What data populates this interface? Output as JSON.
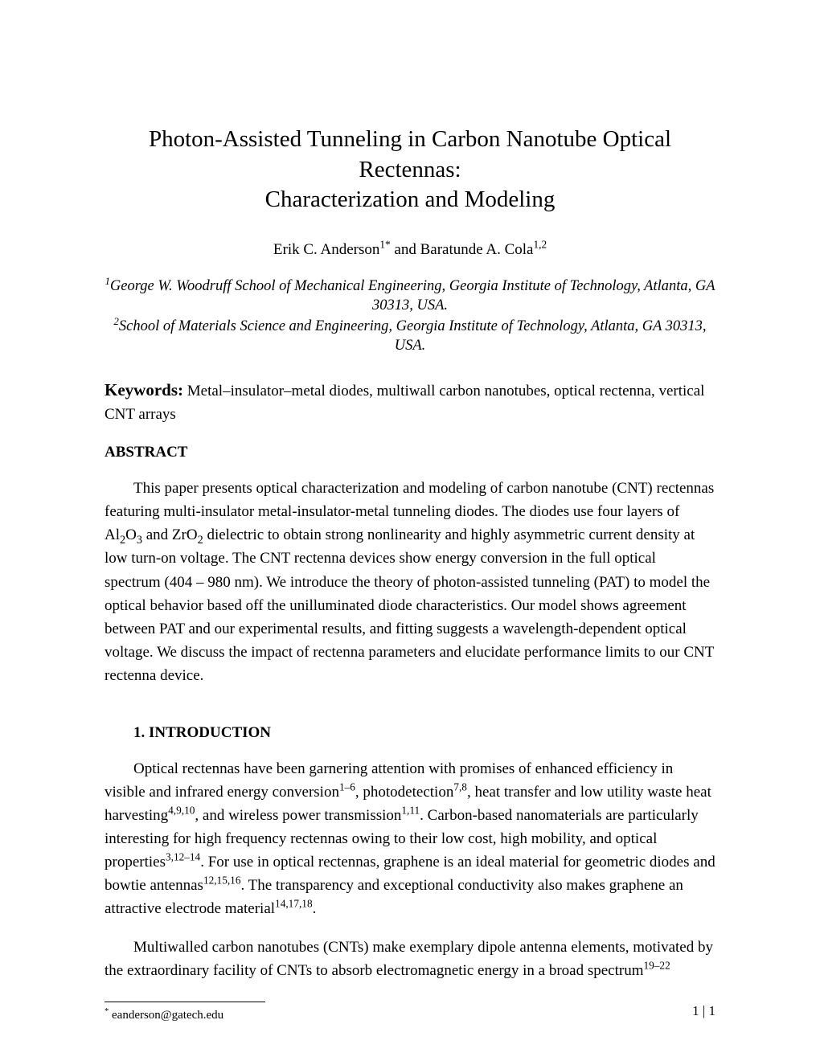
{
  "title_line1": "Photon-Assisted Tunneling in Carbon Nanotube Optical Rectennas:",
  "title_line2": "Characterization and Modeling",
  "authors": {
    "a1_name": "Erik C. Anderson",
    "a1_sup": "1*",
    "conj": " and ",
    "a2_name": "Baratunde A. Cola",
    "a2_sup": "1,2"
  },
  "affiliations": {
    "a1_sup": "1",
    "a1_text": "George W. Woodruff School of Mechanical Engineering, Georgia Institute of Technology, Atlanta, GA 30313, USA.",
    "a2_sup": "2",
    "a2_text": "School of Materials Science and Engineering, Georgia Institute of Technology, Atlanta, GA 30313, USA."
  },
  "keywords": {
    "label": "Keywords:",
    "text": " Metal–insulator–metal diodes, multiwall carbon nanotubes, optical rectenna, vertical CNT arrays"
  },
  "abstract": {
    "heading_prefix": "A",
    "heading_rest": "BSTRACT",
    "p1a": "This paper presents optical characterization and modeling of carbon nanotube (CNT) rectennas featuring multi-insulator metal-insulator-metal tunneling diodes. The diodes use four layers of Al",
    "p1b": "O",
    "p1c": " and ZrO",
    "p1d": " dielectric to obtain strong nonlinearity and highly asymmetric current density at low turn-on voltage. The CNT rectenna devices show energy conversion in the full optical spectrum (404 – 980 nm). We introduce the theory of photon-assisted tunneling (PAT) to model the optical behavior based off the unilluminated diode characteristics. Our model shows agreement between PAT and our experimental results, and fitting suggests a wavelength-dependent optical voltage. We discuss the impact of rectenna parameters and elucidate performance limits to our CNT rectenna device.",
    "sub2": "2",
    "sub3": "3"
  },
  "introduction": {
    "heading_num": "1.  ",
    "heading_prefix": "I",
    "heading_rest": "NTRODUCTION",
    "p1_seg1": "Optical rectennas have been garnering attention with promises of enhanced efficiency in visible and infrared energy conversion",
    "p1_sup1": "1–6",
    "p1_seg2": ", photodetection",
    "p1_sup2": "7,8",
    "p1_seg3": ", heat transfer and low utility waste heat harvesting",
    "p1_sup3": "4,9,10",
    "p1_seg4": ", and wireless power transmission",
    "p1_sup4": "1,11",
    "p1_seg5": ". Carbon-based nanomaterials are particularly interesting for high frequency rectennas owing to their low cost, high mobility, and optical properties",
    "p1_sup5": "3,12–14",
    "p1_seg6": ". For use in optical rectennas, graphene is an ideal material for geometric diodes and bowtie antennas",
    "p1_sup6": "12,15,16",
    "p1_seg7": ". The transparency and exceptional conductivity also makes graphene an attractive electrode material",
    "p1_sup7": "14,17,18",
    "p1_seg8": ".",
    "p2_seg1": "Multiwalled carbon nanotubes (CNTs) make exemplary dipole antenna elements, motivated by the extraordinary facility of CNTs to absorb electromagnetic energy in a broad spectrum",
    "p2_sup1": "19–22"
  },
  "footnote": {
    "marker": "*",
    "text": " eanderson@gatech.edu"
  },
  "pagenum": "1 | 1"
}
